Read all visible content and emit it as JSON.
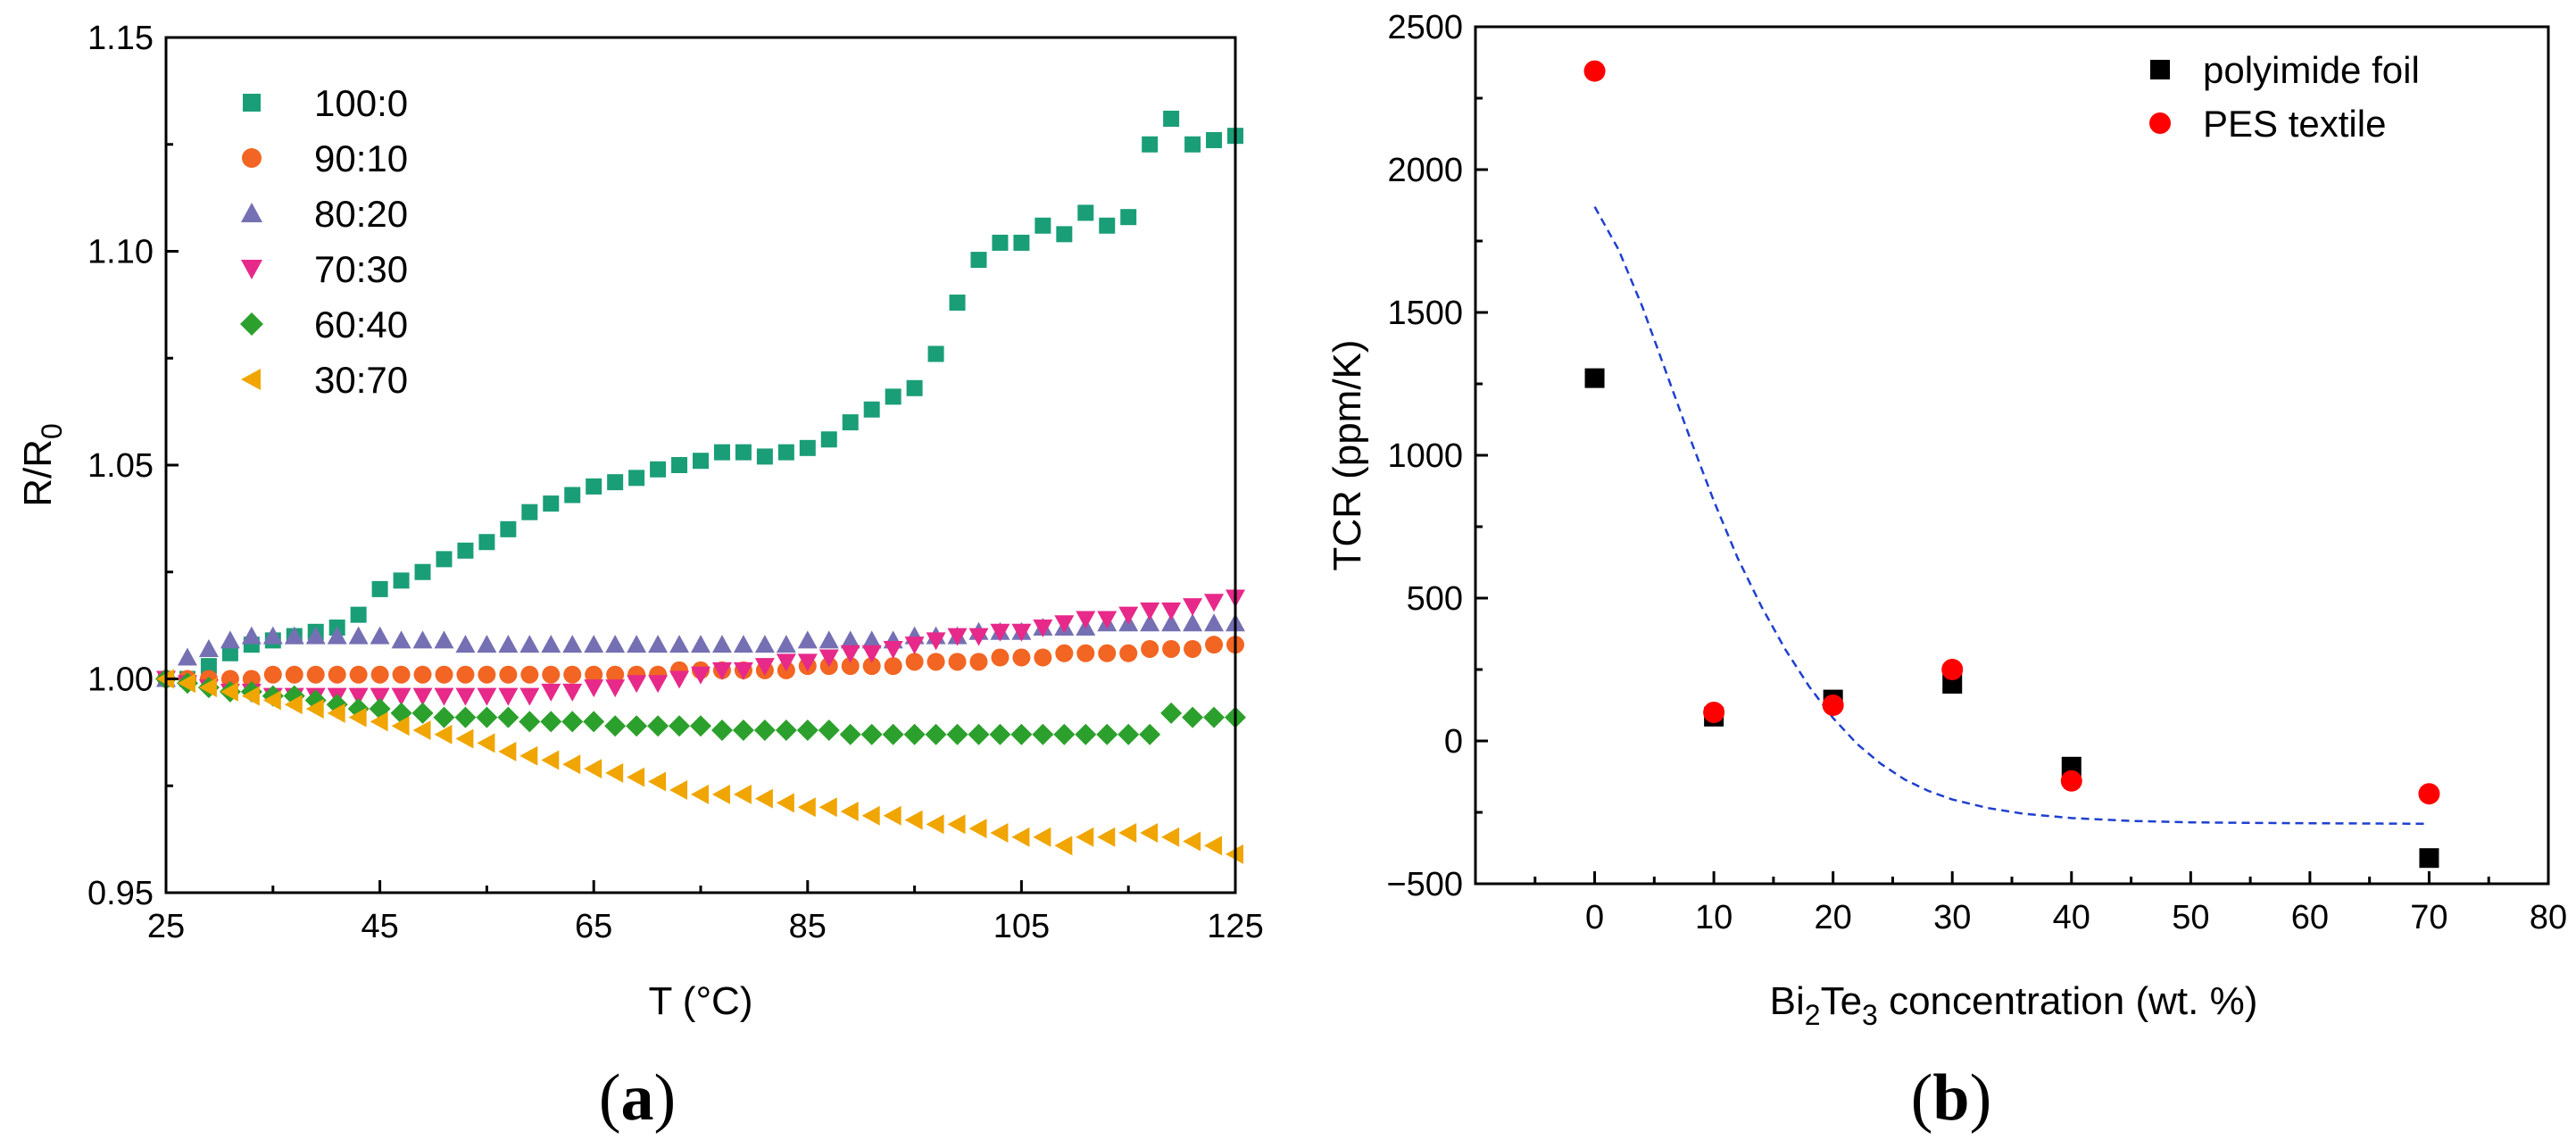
{
  "chart_data": [
    {
      "panel_label": "a",
      "type": "scatter",
      "title": "",
      "xlabel": "T (°C)",
      "ylabel": {
        "main": "R/R",
        "sub": "0"
      },
      "xlim": [
        25,
        125
      ],
      "ylim": [
        0.95,
        1.15
      ],
      "xticks": [
        "25",
        "45",
        "65",
        "85",
        "105",
        "125"
      ],
      "yticks": [
        "0.95",
        "1.00",
        "1.05",
        "1.10",
        "1.15"
      ],
      "legend_position": "top-left",
      "series": [
        {
          "name": "100:0",
          "marker": "square",
          "color": "#1a9e77",
          "x": [
            25,
            27,
            29,
            31,
            33,
            35,
            37,
            39,
            41,
            43,
            45,
            47,
            49,
            51,
            53,
            55,
            57,
            59,
            61,
            63,
            65,
            67,
            69,
            71,
            73,
            75,
            77,
            79,
            81,
            83,
            85,
            87,
            89,
            91,
            93,
            95,
            97,
            99,
            101,
            103,
            105,
            107,
            109,
            111,
            113,
            115,
            117,
            119,
            121,
            123,
            125
          ],
          "y": [
            1.0,
            1.0,
            1.003,
            1.006,
            1.008,
            1.009,
            1.01,
            1.011,
            1.012,
            1.015,
            1.021,
            1.023,
            1.025,
            1.028,
            1.03,
            1.032,
            1.035,
            1.039,
            1.041,
            1.043,
            1.045,
            1.046,
            1.047,
            1.049,
            1.05,
            1.051,
            1.053,
            1.053,
            1.052,
            1.053,
            1.054,
            1.056,
            1.06,
            1.063,
            1.066,
            1.068,
            1.076,
            1.088,
            1.098,
            1.102,
            1.102,
            1.106,
            1.104,
            1.109,
            1.106,
            1.108,
            1.125,
            1.131,
            1.125,
            1.126,
            1.127
          ]
        },
        {
          "name": "90:10",
          "marker": "circle",
          "color": "#f26522",
          "x": [
            25,
            27,
            29,
            31,
            33,
            35,
            37,
            39,
            41,
            43,
            45,
            47,
            49,
            51,
            53,
            55,
            57,
            59,
            61,
            63,
            65,
            67,
            69,
            71,
            73,
            75,
            77,
            79,
            81,
            83,
            85,
            87,
            89,
            91,
            93,
            95,
            97,
            99,
            101,
            103,
            105,
            107,
            109,
            111,
            113,
            115,
            117,
            119,
            121,
            123,
            125
          ],
          "y": [
            1.0,
            1.0,
            1.0,
            1.0,
            1.0,
            1.001,
            1.001,
            1.001,
            1.001,
            1.001,
            1.001,
            1.001,
            1.001,
            1.001,
            1.001,
            1.001,
            1.001,
            1.001,
            1.001,
            1.001,
            1.001,
            1.001,
            1.001,
            1.001,
            1.002,
            1.002,
            1.002,
            1.002,
            1.002,
            1.002,
            1.003,
            1.003,
            1.003,
            1.003,
            1.003,
            1.004,
            1.004,
            1.004,
            1.004,
            1.005,
            1.005,
            1.005,
            1.006,
            1.006,
            1.006,
            1.006,
            1.007,
            1.007,
            1.007,
            1.008,
            1.008
          ]
        },
        {
          "name": "80:20",
          "marker": "triangle-up",
          "color": "#7570b3",
          "x": [
            25,
            27,
            29,
            31,
            33,
            35,
            37,
            39,
            41,
            43,
            45,
            47,
            49,
            51,
            53,
            55,
            57,
            59,
            61,
            63,
            65,
            67,
            69,
            71,
            73,
            75,
            77,
            79,
            81,
            83,
            85,
            87,
            89,
            91,
            93,
            95,
            97,
            99,
            101,
            103,
            105,
            107,
            109,
            111,
            113,
            115,
            117,
            119,
            121,
            123,
            125
          ],
          "y": [
            1.0,
            1.005,
            1.007,
            1.009,
            1.01,
            1.01,
            1.01,
            1.01,
            1.01,
            1.01,
            1.01,
            1.009,
            1.009,
            1.009,
            1.008,
            1.008,
            1.008,
            1.008,
            1.008,
            1.008,
            1.008,
            1.008,
            1.008,
            1.008,
            1.008,
            1.008,
            1.008,
            1.008,
            1.008,
            1.008,
            1.009,
            1.009,
            1.009,
            1.009,
            1.009,
            1.01,
            1.01,
            1.01,
            1.011,
            1.011,
            1.011,
            1.012,
            1.012,
            1.012,
            1.013,
            1.013,
            1.013,
            1.013,
            1.013,
            1.013,
            1.013
          ]
        },
        {
          "name": "70:30",
          "marker": "triangle-down",
          "color": "#e7298a",
          "x": [
            25,
            27,
            29,
            31,
            33,
            35,
            37,
            39,
            41,
            43,
            45,
            47,
            49,
            51,
            53,
            55,
            57,
            59,
            61,
            63,
            65,
            67,
            69,
            71,
            73,
            75,
            77,
            79,
            81,
            83,
            85,
            87,
            89,
            91,
            93,
            95,
            97,
            99,
            101,
            103,
            105,
            107,
            109,
            111,
            113,
            115,
            117,
            119,
            121,
            123,
            125
          ],
          "y": [
            1.0,
            0.999,
            0.998,
            0.997,
            0.997,
            0.996,
            0.996,
            0.996,
            0.996,
            0.996,
            0.996,
            0.996,
            0.996,
            0.996,
            0.996,
            0.996,
            0.996,
            0.996,
            0.997,
            0.997,
            0.998,
            0.998,
            0.999,
            0.999,
            1.0,
            1.001,
            1.002,
            1.002,
            1.003,
            1.004,
            1.004,
            1.005,
            1.006,
            1.006,
            1.007,
            1.008,
            1.009,
            1.01,
            1.01,
            1.011,
            1.011,
            1.012,
            1.013,
            1.014,
            1.014,
            1.015,
            1.016,
            1.016,
            1.017,
            1.018,
            1.019
          ]
        },
        {
          "name": "60:40",
          "marker": "diamond",
          "color": "#2ca02c",
          "x": [
            25,
            27,
            29,
            31,
            33,
            35,
            37,
            39,
            41,
            43,
            45,
            47,
            49,
            51,
            53,
            55,
            57,
            59,
            61,
            63,
            65,
            67,
            69,
            71,
            73,
            75,
            77,
            79,
            81,
            83,
            85,
            87,
            89,
            91,
            93,
            95,
            97,
            99,
            101,
            103,
            105,
            107,
            109,
            111,
            113,
            115,
            117,
            119,
            121,
            123,
            125
          ],
          "y": [
            1.0,
            0.999,
            0.998,
            0.997,
            0.997,
            0.996,
            0.996,
            0.995,
            0.994,
            0.993,
            0.993,
            0.992,
            0.992,
            0.991,
            0.991,
            0.991,
            0.991,
            0.99,
            0.99,
            0.99,
            0.99,
            0.989,
            0.989,
            0.989,
            0.989,
            0.989,
            0.988,
            0.988,
            0.988,
            0.988,
            0.988,
            0.988,
            0.987,
            0.987,
            0.987,
            0.987,
            0.987,
            0.987,
            0.987,
            0.987,
            0.987,
            0.987,
            0.987,
            0.987,
            0.987,
            0.987,
            0.987,
            0.992,
            0.991,
            0.991,
            0.991
          ]
        },
        {
          "name": "30:70",
          "marker": "triangle-left",
          "color": "#f0a500",
          "x": [
            25,
            27,
            29,
            31,
            33,
            35,
            37,
            39,
            41,
            43,
            45,
            47,
            49,
            51,
            53,
            55,
            57,
            59,
            61,
            63,
            65,
            67,
            69,
            71,
            73,
            75,
            77,
            79,
            81,
            83,
            85,
            87,
            89,
            91,
            93,
            95,
            97,
            99,
            101,
            103,
            105,
            107,
            109,
            111,
            113,
            115,
            117,
            119,
            121,
            123,
            125
          ],
          "y": [
            1.0,
            0.999,
            0.998,
            0.997,
            0.996,
            0.995,
            0.994,
            0.993,
            0.992,
            0.991,
            0.99,
            0.989,
            0.988,
            0.987,
            0.986,
            0.985,
            0.983,
            0.982,
            0.981,
            0.98,
            0.979,
            0.978,
            0.977,
            0.976,
            0.974,
            0.973,
            0.973,
            0.973,
            0.972,
            0.971,
            0.97,
            0.97,
            0.969,
            0.968,
            0.968,
            0.967,
            0.966,
            0.966,
            0.965,
            0.964,
            0.963,
            0.963,
            0.961,
            0.963,
            0.963,
            0.964,
            0.964,
            0.963,
            0.962,
            0.961,
            0.959
          ]
        }
      ]
    },
    {
      "panel_label": "b",
      "type": "scatter",
      "title": "",
      "xlabel": {
        "pre": "Bi",
        "sub1": "2",
        "mid": "Te",
        "sub2": "3",
        "post": " concentration (wt. %)"
      },
      "ylabel": "TCR (ppm/K)",
      "xlim": [
        -10,
        80
      ],
      "ylim": [
        -500,
        2500
      ],
      "xticks": [
        "0",
        "10",
        "20",
        "30",
        "40",
        "50",
        "60",
        "70",
        "80"
      ],
      "yticks": [
        "−500",
        "0",
        "500",
        "1000",
        "1500",
        "2000",
        "2500"
      ],
      "legend_position": "top-right",
      "series": [
        {
          "name": "polyimide foil",
          "marker": "square",
          "color": "#000000",
          "x": [
            0,
            10,
            20,
            30,
            40,
            70
          ],
          "y": [
            1270,
            85,
            145,
            200,
            -90,
            -410
          ]
        },
        {
          "name": "PES textile",
          "marker": "circle",
          "color": "#ff0000",
          "x": [
            0,
            10,
            20,
            30,
            40,
            70
          ],
          "y": [
            2345,
            100,
            125,
            250,
            -140,
            -185
          ]
        }
      ],
      "fit_curve": {
        "style": "dashed",
        "color": "#1f3fd0",
        "x": [
          0,
          2,
          4,
          6,
          8,
          10,
          12,
          14,
          16,
          18,
          20,
          22,
          24,
          26,
          28,
          30,
          33,
          36,
          40,
          45,
          50,
          55,
          60,
          65,
          70
        ],
        "y": [
          1870,
          1720,
          1520,
          1290,
          1060,
          840,
          640,
          470,
          320,
          190,
          80,
          -10,
          -80,
          -135,
          -175,
          -205,
          -235,
          -255,
          -270,
          -280,
          -285,
          -287,
          -288,
          -289,
          -290
        ]
      }
    }
  ]
}
